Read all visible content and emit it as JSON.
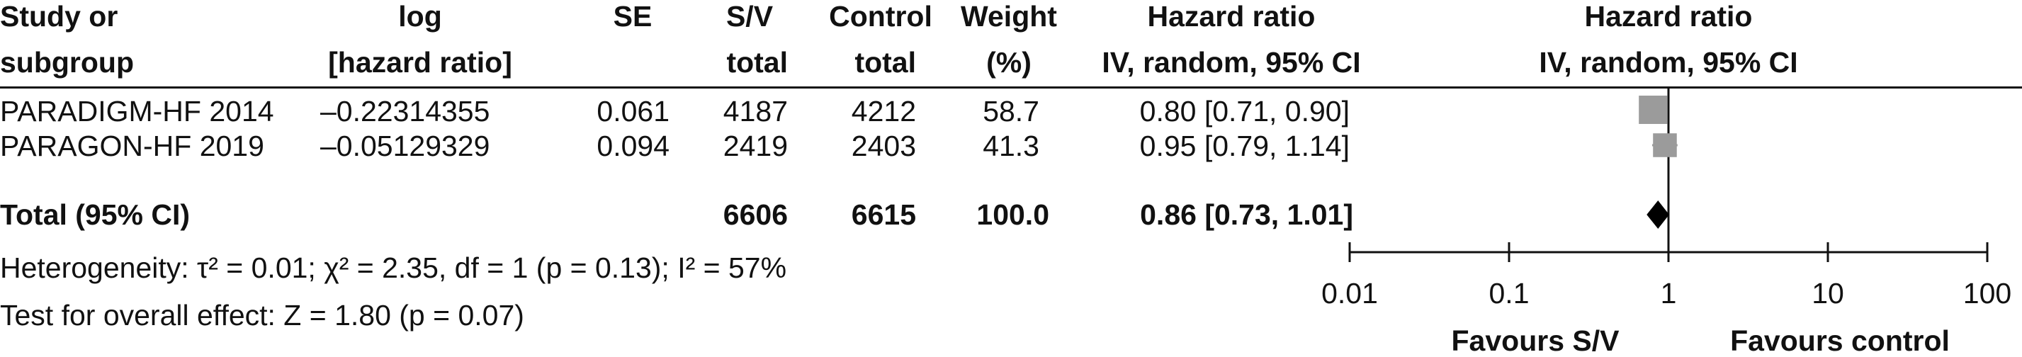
{
  "header": {
    "study": [
      "Study or",
      "subgroup"
    ],
    "log": [
      "log",
      "[hazard ratio]"
    ],
    "se": [
      "SE",
      ""
    ],
    "sv": [
      "S/V",
      "total"
    ],
    "control": [
      "Control",
      "total"
    ],
    "weight": [
      "Weight",
      "(%)"
    ],
    "hr": [
      "Hazard ratio",
      "IV, random, 95% CI"
    ],
    "plot": [
      "Hazard ratio",
      "IV, random, 95% CI"
    ]
  },
  "rows": [
    {
      "study": "PARADIGM-HF 2014",
      "log": "–0.22314355",
      "se": "0.061",
      "sv": "4187",
      "control": "4212",
      "weight": "58.7",
      "hr": "0.80 [0.71, 0.90]"
    },
    {
      "study": "PARAGON-HF 2019",
      "log": "–0.05129329",
      "se": "0.094",
      "sv": "2419",
      "control": "2403",
      "weight": "41.3",
      "hr": "0.95 [0.79, 1.14]"
    }
  ],
  "total": {
    "label": "Total (95% CI)",
    "sv": "6606",
    "control": "6615",
    "weight": "100.0",
    "hr": "0.86 [0.73, 1.01]"
  },
  "footer": {
    "heterogeneity": "Heterogeneity: τ² = 0.01; χ² = 2.35, df = 1 (p = 0.13); I² = 57%",
    "overall": "Test for overall effect: Z = 1.80 (p = 0.07)"
  },
  "axis": {
    "ticks": [
      "0.01",
      "0.1",
      "1",
      "10",
      "100"
    ]
  },
  "favours": {
    "left": "Favours S/V",
    "right": "Favours control"
  },
  "colors": {
    "study_marker": "#9b9b9b",
    "diamond": "#000000",
    "line": "#111111"
  },
  "chart_data": {
    "type": "forest",
    "scale": "log",
    "xlim": [
      0.01,
      100
    ],
    "null_line": 1,
    "studies": [
      {
        "name": "PARADIGM-HF 2014",
        "hr": 0.8,
        "ci": [
          0.71,
          0.9
        ],
        "weight": 58.7
      },
      {
        "name": "PARAGON-HF 2019",
        "hr": 0.95,
        "ci": [
          0.79,
          1.14
        ],
        "weight": 41.3
      }
    ],
    "pooled": {
      "name": "Total (95% CI)",
      "hr": 0.86,
      "ci": [
        0.73,
        1.01
      ]
    }
  }
}
